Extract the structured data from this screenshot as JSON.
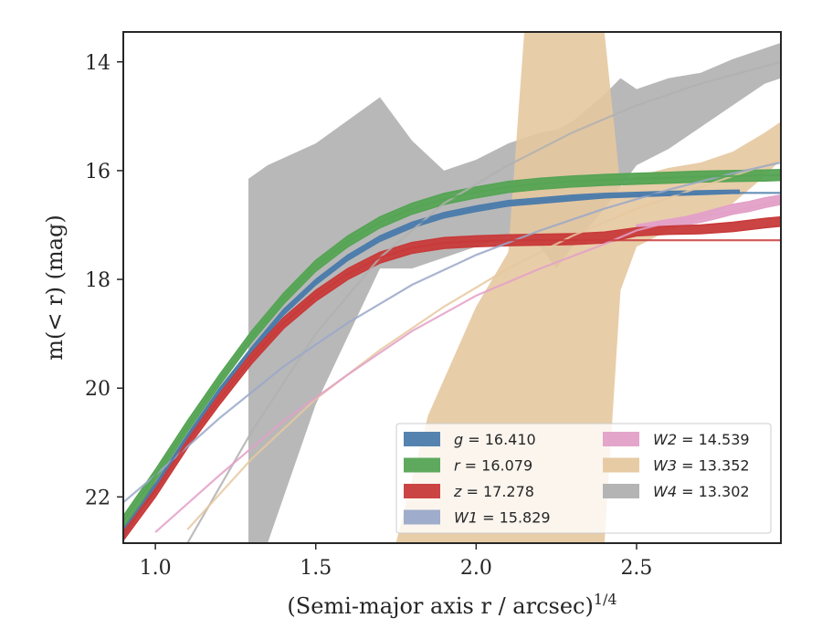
{
  "chart_data": {
    "type": "line",
    "xlabel": "(Semi-major axis r / arcsec)",
    "xlabel_exponent": "1/4",
    "ylabel": "m(< r) (mag)",
    "xlim": [
      0.9,
      2.95
    ],
    "ylim": [
      22.85,
      13.45
    ],
    "y_inverted": true,
    "grid": false,
    "legend_position": "lower-right",
    "x_ticks": [
      {
        "value": 1.0,
        "label": "1.0"
      },
      {
        "value": 1.5,
        "label": "1.5"
      },
      {
        "value": 2.0,
        "label": "2.0"
      },
      {
        "value": 2.5,
        "label": "2.5"
      }
    ],
    "y_ticks": [
      {
        "value": 14,
        "label": "14"
      },
      {
        "value": 16,
        "label": "16"
      },
      {
        "value": 18,
        "label": "18"
      },
      {
        "value": 20,
        "label": "20"
      },
      {
        "value": 22,
        "label": "22"
      }
    ],
    "series": [
      {
        "band": "g",
        "mag": "16.410",
        "color": "#4c7cab",
        "model_x": [
          0.9,
          1.0,
          1.1,
          1.2,
          1.3,
          1.4,
          1.5,
          1.6,
          1.7,
          1.8,
          1.9,
          2.0,
          2.1,
          2.2,
          2.3,
          2.4,
          2.5,
          2.6,
          2.7,
          2.8,
          2.9,
          2.95
        ],
        "model_y": [
          22.6,
          21.8,
          20.9,
          20.05,
          19.3,
          18.6,
          18.05,
          17.6,
          17.25,
          17.0,
          16.82,
          16.7,
          16.6,
          16.55,
          16.5,
          16.47,
          16.45,
          16.43,
          16.42,
          16.41,
          16.41,
          16.41
        ],
        "data_x": [
          0.9,
          1.0,
          1.1,
          1.2,
          1.3,
          1.4,
          1.5,
          1.6,
          1.7,
          1.8,
          1.9,
          2.0,
          2.1,
          2.2,
          2.3,
          2.4,
          2.5,
          2.6,
          2.7,
          2.8,
          2.82
        ],
        "data_lo": [
          22.75,
          21.85,
          20.95,
          20.1,
          19.35,
          18.65,
          18.1,
          17.65,
          17.3,
          17.05,
          16.87,
          16.75,
          16.65,
          16.6,
          16.55,
          16.5,
          16.48,
          16.46,
          16.44,
          16.42,
          16.42
        ],
        "data_hi": [
          22.55,
          21.75,
          20.85,
          20.0,
          19.25,
          18.55,
          18.0,
          17.55,
          17.2,
          16.95,
          16.77,
          16.65,
          16.55,
          16.5,
          16.45,
          16.42,
          16.4,
          16.38,
          16.37,
          16.36,
          16.36
        ]
      },
      {
        "band": "r",
        "mag": "16.079",
        "color": "#55a454",
        "model_x": [
          0.9,
          1.0,
          1.1,
          1.2,
          1.3,
          1.4,
          1.5,
          1.6,
          1.7,
          1.8,
          1.9,
          2.0,
          2.1,
          2.2,
          2.3,
          2.4,
          2.5,
          2.6,
          2.7,
          2.8,
          2.9,
          2.95
        ],
        "model_y": [
          22.45,
          21.6,
          20.7,
          19.85,
          19.05,
          18.35,
          17.75,
          17.3,
          16.95,
          16.7,
          16.52,
          16.4,
          16.3,
          16.24,
          16.2,
          16.17,
          16.15,
          16.13,
          16.11,
          16.1,
          16.09,
          16.08
        ],
        "data_x": [
          0.9,
          1.0,
          1.1,
          1.2,
          1.3,
          1.4,
          1.5,
          1.6,
          1.7,
          1.8,
          1.9,
          2.0,
          2.1,
          2.2,
          2.3,
          2.4,
          2.5,
          2.6,
          2.7,
          2.8,
          2.9,
          2.95
        ],
        "data_lo": [
          22.6,
          21.7,
          20.8,
          19.95,
          19.15,
          18.45,
          17.85,
          17.4,
          17.05,
          16.8,
          16.62,
          16.5,
          16.4,
          16.34,
          16.3,
          16.27,
          16.25,
          16.23,
          16.21,
          16.2,
          16.19,
          16.18
        ],
        "data_hi": [
          22.35,
          21.5,
          20.6,
          19.75,
          18.95,
          18.25,
          17.65,
          17.2,
          16.85,
          16.6,
          16.42,
          16.3,
          16.2,
          16.14,
          16.1,
          16.07,
          16.05,
          16.03,
          16.01,
          16.0,
          15.99,
          15.98
        ]
      },
      {
        "band": "z",
        "mag": "17.278",
        "color": "#c83a3a",
        "model_x": [
          0.9,
          1.0,
          1.1,
          1.2,
          1.3,
          1.4,
          1.5,
          1.6,
          1.7,
          1.8,
          1.9,
          2.0,
          2.1,
          2.2,
          2.3,
          2.4,
          2.5,
          2.6,
          2.7,
          2.8,
          2.9,
          2.95
        ],
        "model_y": [
          22.65,
          21.9,
          21.0,
          20.2,
          19.45,
          18.8,
          18.3,
          17.9,
          17.6,
          17.42,
          17.33,
          17.3,
          17.28,
          17.28,
          17.28,
          17.28,
          17.28,
          17.28,
          17.28,
          17.28,
          17.28,
          17.28
        ],
        "data_x": [
          0.9,
          1.0,
          1.1,
          1.2,
          1.3,
          1.4,
          1.5,
          1.6,
          1.7,
          1.8,
          1.9,
          2.0,
          2.1,
          2.2,
          2.3,
          2.4,
          2.5,
          2.6,
          2.7,
          2.8,
          2.9,
          2.95
        ],
        "data_lo": [
          22.8,
          22.0,
          21.1,
          20.3,
          19.55,
          18.9,
          18.4,
          18.0,
          17.7,
          17.52,
          17.43,
          17.4,
          17.38,
          17.37,
          17.36,
          17.33,
          17.2,
          17.17,
          17.16,
          17.12,
          17.05,
          17.02
        ],
        "data_hi": [
          22.6,
          21.8,
          20.9,
          20.1,
          19.35,
          18.7,
          18.2,
          17.8,
          17.5,
          17.32,
          17.23,
          17.2,
          17.18,
          17.17,
          17.16,
          17.13,
          17.05,
          17.02,
          17.0,
          16.95,
          16.88,
          16.85
        ]
      },
      {
        "band": "W1",
        "mag": "15.829",
        "color": "#9aa8c8",
        "model_x": [
          0.9,
          1.0,
          1.2,
          1.4,
          1.6,
          1.8,
          2.0,
          2.2,
          2.4,
          2.6,
          2.8,
          2.95
        ],
        "model_y": [
          22.1,
          21.6,
          20.55,
          19.6,
          18.8,
          18.1,
          17.55,
          17.1,
          16.7,
          16.35,
          16.05,
          15.85
        ],
        "data_x": [],
        "data_lo": [],
        "data_hi": []
      },
      {
        "band": "W2",
        "mag": "14.539",
        "color": "#e3a0c8",
        "model_x": [
          1.0,
          1.2,
          1.4,
          1.6,
          1.8,
          2.0,
          2.2,
          2.4,
          2.5,
          2.6,
          2.8,
          2.95
        ],
        "model_y": [
          22.65,
          21.6,
          20.6,
          19.75,
          18.95,
          18.3,
          17.8,
          17.35,
          17.1,
          16.95,
          16.75,
          16.55
        ],
        "data_x": [
          2.5,
          2.55,
          2.6,
          2.65,
          2.7,
          2.75,
          2.8,
          2.85,
          2.9,
          2.95
        ],
        "data_lo": [
          17.15,
          17.1,
          17.05,
          17.0,
          16.95,
          16.88,
          16.8,
          16.75,
          16.68,
          16.62
        ],
        "data_hi": [
          17.0,
          16.95,
          16.9,
          16.85,
          16.78,
          16.7,
          16.62,
          16.57,
          16.5,
          16.45
        ]
      },
      {
        "band": "W3",
        "mag": "13.352",
        "color": "#e6c8a0",
        "model_x": [
          1.1,
          1.3,
          1.5,
          1.7,
          1.9,
          2.1,
          2.3,
          2.5,
          2.7,
          2.95
        ],
        "model_y": [
          22.6,
          21.3,
          20.2,
          19.3,
          18.5,
          17.8,
          17.2,
          16.7,
          16.3,
          15.8
        ],
        "data_x": [
          1.75,
          1.85,
          2.0,
          2.1,
          2.15,
          2.2,
          2.3,
          2.4,
          2.45,
          2.5,
          2.6,
          2.7,
          2.8,
          2.9,
          2.95
        ],
        "data_lo": [
          22.85,
          22.85,
          22.85,
          22.85,
          22.85,
          22.85,
          22.85,
          22.85,
          18.2,
          17.4,
          17.1,
          16.9,
          16.6,
          16.1,
          15.8
        ],
        "data_hi": [
          22.85,
          20.5,
          18.5,
          17.5,
          13.45,
          13.45,
          13.45,
          13.45,
          16.3,
          16.1,
          15.95,
          15.85,
          15.65,
          15.3,
          15.1
        ]
      },
      {
        "band": "W4",
        "mag": "13.302",
        "color": "#b0b0b0",
        "model_x": [
          1.1,
          1.3,
          1.5,
          1.7,
          1.9,
          2.1,
          2.3,
          2.5,
          2.7,
          2.95
        ],
        "model_y": [
          22.85,
          20.8,
          19.0,
          17.6,
          16.6,
          15.9,
          15.3,
          14.8,
          14.4,
          14.0
        ],
        "data_x": [
          1.29,
          1.35,
          1.5,
          1.7,
          1.8,
          1.9,
          2.0,
          2.1,
          2.2,
          2.25,
          2.3,
          2.4,
          2.45,
          2.5,
          2.6,
          2.7,
          2.8,
          2.9,
          2.95
        ],
        "data_lo": [
          22.85,
          22.85,
          20.3,
          17.8,
          17.8,
          17.6,
          17.4,
          17.2,
          17.4,
          17.8,
          17.4,
          16.7,
          16.3,
          15.9,
          15.6,
          15.2,
          14.8,
          14.4,
          14.3
        ],
        "data_hi": [
          16.15,
          15.9,
          15.5,
          14.65,
          15.45,
          16.0,
          15.8,
          15.5,
          15.3,
          15.25,
          15.1,
          14.6,
          14.3,
          14.5,
          14.3,
          14.2,
          13.95,
          13.75,
          13.65
        ]
      }
    ],
    "legend_order": [
      "g",
      "r",
      "z",
      "W1",
      "W2",
      "W3",
      "W4"
    ]
  }
}
